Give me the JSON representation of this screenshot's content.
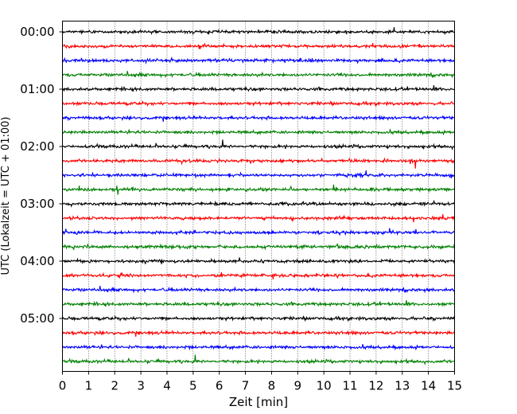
{
  "chart_data": {
    "type": "line",
    "title": "",
    "xlabel": "Zeit  [min]",
    "ylabel": "UTC (Lokalzeit = UTC + 01:00)",
    "xlim": [
      0,
      15
    ],
    "x_ticks": [
      0,
      1,
      2,
      3,
      4,
      5,
      6,
      7,
      8,
      9,
      10,
      11,
      12,
      13,
      14,
      15
    ],
    "y_tick_labels": [
      "00:00",
      "01:00",
      "02:00",
      "03:00",
      "04:00",
      "05:00"
    ],
    "traces_per_hour": 4,
    "trace_minutes": 15,
    "trace_start_times": [
      "00:00",
      "00:15",
      "00:30",
      "00:45",
      "01:00",
      "01:15",
      "01:30",
      "01:45",
      "02:00",
      "02:15",
      "02:30",
      "02:45",
      "03:00",
      "03:15",
      "03:30",
      "03:45",
      "04:00",
      "04:15",
      "04:30",
      "04:45",
      "05:00",
      "05:15",
      "05:30",
      "05:45"
    ],
    "trace_colors": [
      "#000000",
      "#ff0000",
      "#0000ff",
      "#008000"
    ],
    "grid_x": true,
    "grid_style": "dotted"
  }
}
